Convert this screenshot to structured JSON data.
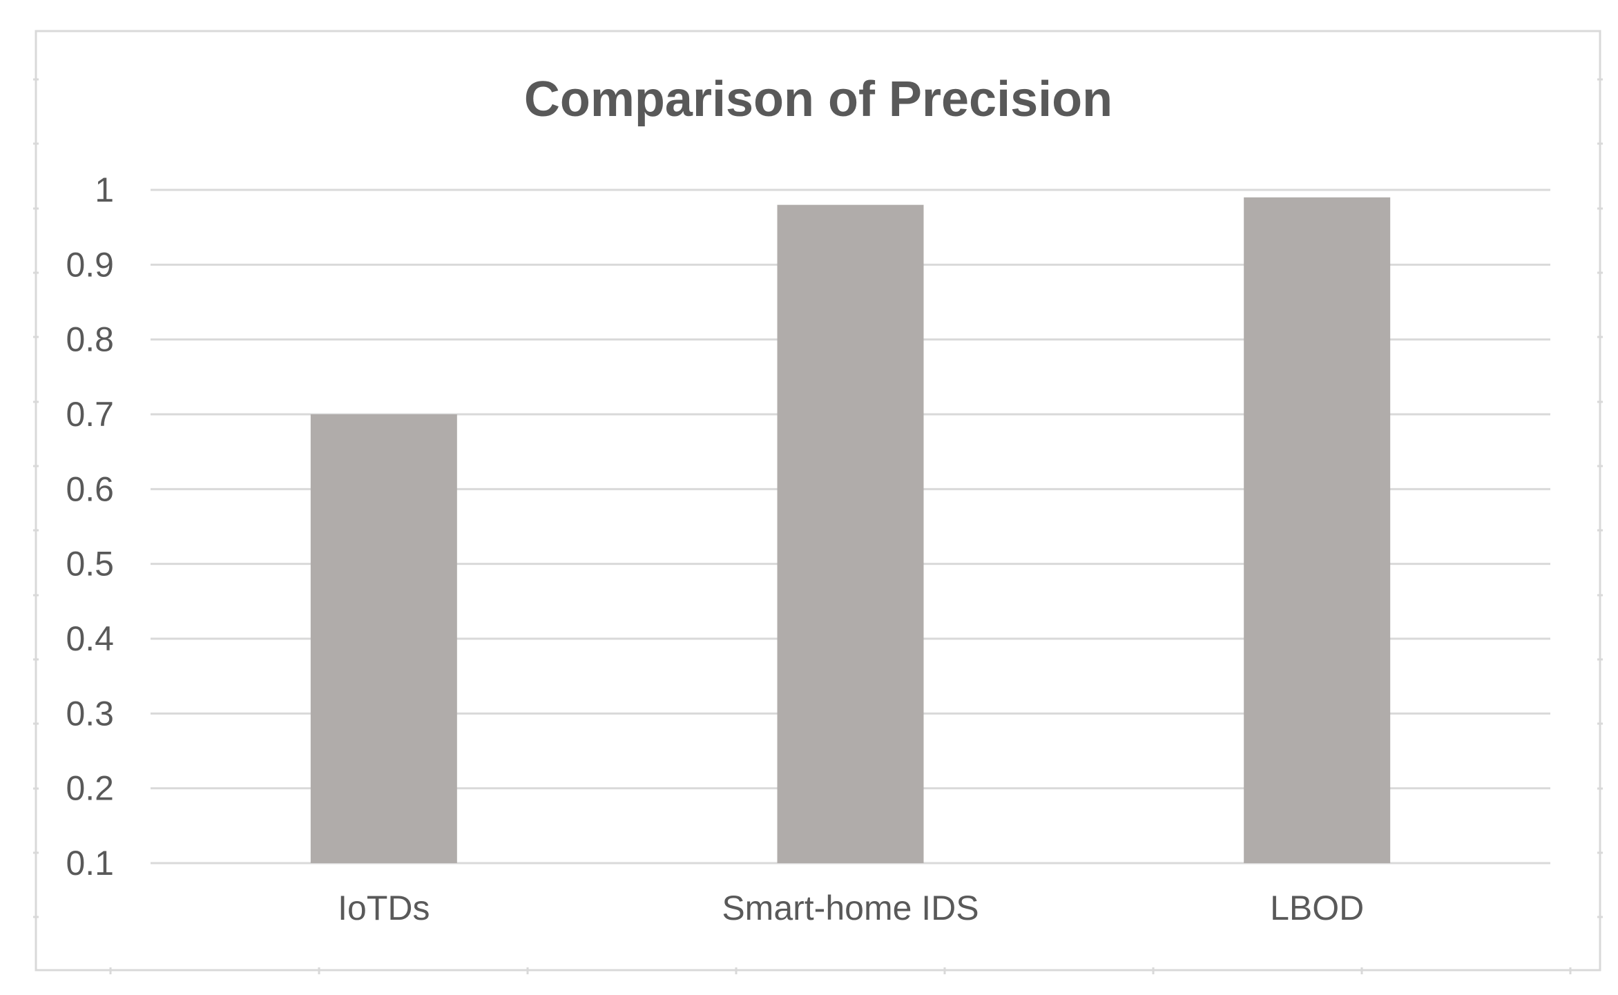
{
  "chart_data": {
    "type": "bar",
    "title": "Comparison of Precision",
    "categories": [
      "IoTDs",
      "Smart-home IDS",
      "LBOD"
    ],
    "values": [
      0.7,
      0.98,
      0.99
    ],
    "xlabel": "",
    "ylabel": "",
    "ylim": [
      0.1,
      1.0
    ],
    "y_ticks": [
      "1",
      "0.9",
      "0.8",
      "0.7",
      "0.6",
      "0.5",
      "0.4",
      "0.3",
      "0.2",
      "0.1"
    ],
    "grid": true,
    "legend": "none",
    "colors": {
      "bar": "#b0acaa",
      "grid": "#d9d9d9",
      "text": "#595959",
      "border": "#d9d9d9"
    }
  }
}
